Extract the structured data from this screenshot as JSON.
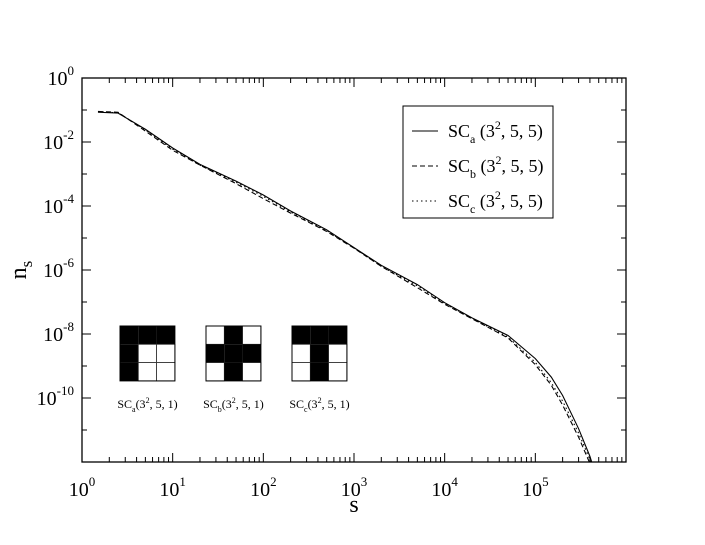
{
  "chart_data": {
    "type": "line",
    "x_scale": "log",
    "y_scale": "log",
    "xlim": [
      1,
      1000000
    ],
    "ylim": [
      1e-12,
      1
    ],
    "xlabel": {
      "base": "s"
    },
    "ylabel": {
      "base": "n",
      "sub": "s"
    },
    "grid": false,
    "legend_position": "top-right",
    "x_ticks": [
      {
        "value": 1,
        "base": "10",
        "exp": "0"
      },
      {
        "value": 10,
        "base": "10",
        "exp": "1"
      },
      {
        "value": 100,
        "base": "10",
        "exp": "2"
      },
      {
        "value": 1000,
        "base": "10",
        "exp": "3"
      },
      {
        "value": 10000,
        "base": "10",
        "exp": "4"
      },
      {
        "value": 100000,
        "base": "10",
        "exp": "5"
      }
    ],
    "y_ticks": [
      {
        "value": 1,
        "base": "10",
        "exp": "0"
      },
      {
        "value": 0.01,
        "base": "10",
        "exp": "-2"
      },
      {
        "value": 0.0001,
        "base": "10",
        "exp": "-4"
      },
      {
        "value": 1e-06,
        "base": "10",
        "exp": "-6"
      },
      {
        "value": 1e-08,
        "base": "10",
        "exp": "-8"
      },
      {
        "value": 1e-10,
        "base": "10",
        "exp": "-10"
      }
    ],
    "series": [
      {
        "name": {
          "pre": "SC",
          "sub": "a",
          "open": " (3",
          "sup": "2",
          "post": ", 5, 5)"
        },
        "dash": "solid",
        "x": [
          1.5,
          2.5,
          5,
          10,
          20,
          50,
          100,
          200,
          500,
          1000,
          2000,
          5000,
          10000,
          20000,
          50000,
          100000,
          150000,
          200000,
          300000,
          400000,
          500000
        ],
        "y": [
          0.085,
          0.08,
          0.025,
          0.0065,
          0.002,
          0.0006,
          0.00022,
          7e-05,
          1.8e-05,
          5e-06,
          1.4e-06,
          3.5e-07,
          9.5e-08,
          3.2e-08,
          9e-09,
          1.7e-09,
          4.5e-10,
          1.2e-10,
          1.1e-11,
          1.5e-12,
          2e-13
        ]
      },
      {
        "name": {
          "pre": "SC",
          "sub": "b",
          "open": " (3",
          "sup": "2",
          "post": ", 5, 5)"
        },
        "dash": "dashed",
        "x": [
          1.5,
          2.5,
          5,
          10,
          20,
          50,
          100,
          200,
          500,
          1000,
          2000,
          5000,
          10000,
          20000,
          50000,
          100000,
          150000,
          200000,
          300000,
          400000,
          500000
        ],
        "y": [
          0.09,
          0.085,
          0.022,
          0.0055,
          0.0019,
          0.0005,
          0.00017,
          6e-05,
          1.6e-05,
          4.8e-06,
          1.3e-06,
          2.8e-07,
          8.5e-08,
          3e-08,
          7.5e-09,
          1.1e-09,
          2.5e-10,
          6e-11,
          6e-12,
          9e-13,
          1.5e-13
        ]
      },
      {
        "name": {
          "pre": "SC",
          "sub": "c",
          "open": " (3",
          "sup": "2",
          "post": ", 5, 5)"
        },
        "dash": "dotted",
        "x": [
          1.5,
          2.5,
          5,
          10,
          20,
          50,
          100,
          200,
          500,
          1000,
          2000,
          5000,
          10000,
          20000,
          50000,
          100000,
          150000,
          200000,
          300000,
          400000,
          500000
        ],
        "y": [
          0.088,
          0.082,
          0.024,
          0.006,
          0.0019,
          0.00055,
          0.0002,
          6.5e-05,
          1.7e-05,
          4.9e-06,
          1.3e-06,
          3.2e-07,
          9e-08,
          3.1e-08,
          8e-09,
          1.3e-09,
          3e-10,
          8e-11,
          8e-12,
          1.2e-12,
          1.8e-13
        ]
      }
    ],
    "annotations": [
      {
        "kind": "pattern-grid",
        "label": {
          "pre": "SC",
          "sub": "a",
          "open": "(3",
          "sup": "2",
          "post": ", 5, 1)"
        },
        "cells": [
          [
            1,
            1,
            1
          ],
          [
            1,
            0,
            0
          ],
          [
            1,
            0,
            0
          ]
        ]
      },
      {
        "kind": "pattern-grid",
        "label": {
          "pre": "SC",
          "sub": "b",
          "open": "(3",
          "sup": "2",
          "post": ", 5, 1)"
        },
        "cells": [
          [
            0,
            1,
            0
          ],
          [
            1,
            1,
            1
          ],
          [
            0,
            1,
            0
          ]
        ]
      },
      {
        "kind": "pattern-grid",
        "label": {
          "pre": "SC",
          "sub": "c",
          "open": "(3",
          "sup": "2",
          "post": ", 5, 1)"
        },
        "cells": [
          [
            1,
            1,
            1
          ],
          [
            0,
            1,
            0
          ],
          [
            0,
            1,
            0
          ]
        ]
      }
    ]
  }
}
